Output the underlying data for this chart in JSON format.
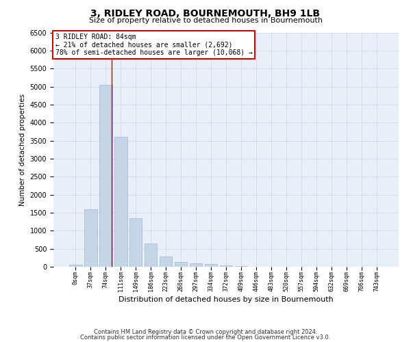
{
  "title": "3, RIDLEY ROAD, BOURNEMOUTH, BH9 1LB",
  "subtitle": "Size of property relative to detached houses in Bournemouth",
  "xlabel": "Distribution of detached houses by size in Bournemouth",
  "ylabel": "Number of detached properties",
  "footer1": "Contains HM Land Registry data © Crown copyright and database right 2024.",
  "footer2": "Contains public sector information licensed under the Open Government Licence v3.0.",
  "categories": [
    "0sqm",
    "37sqm",
    "74sqm",
    "111sqm",
    "149sqm",
    "186sqm",
    "223sqm",
    "260sqm",
    "297sqm",
    "334sqm",
    "372sqm",
    "409sqm",
    "446sqm",
    "483sqm",
    "520sqm",
    "557sqm",
    "594sqm",
    "632sqm",
    "669sqm",
    "706sqm",
    "743sqm"
  ],
  "values": [
    55,
    1600,
    5050,
    3600,
    1350,
    650,
    280,
    130,
    100,
    70,
    30,
    10,
    5,
    0,
    0,
    0,
    0,
    0,
    0,
    0,
    0
  ],
  "bar_color": "#c5d5e8",
  "bar_edge_color": "#a0b8d0",
  "grid_color": "#c8d8e8",
  "background_color": "#e8eff8",
  "annotation_box_color": "#ffffff",
  "annotation_border_color": "#cc0000",
  "vline_color": "#cc0000",
  "vline_x": 2.42,
  "annotation_text1": "3 RIDLEY ROAD: 84sqm",
  "annotation_text2": "← 21% of detached houses are smaller (2,692)",
  "annotation_text3": "78% of semi-detached houses are larger (10,068) →",
  "ylim": [
    0,
    6500
  ],
  "yticks": [
    0,
    500,
    1000,
    1500,
    2000,
    2500,
    3000,
    3500,
    4000,
    4500,
    5000,
    5500,
    6000,
    6500
  ]
}
